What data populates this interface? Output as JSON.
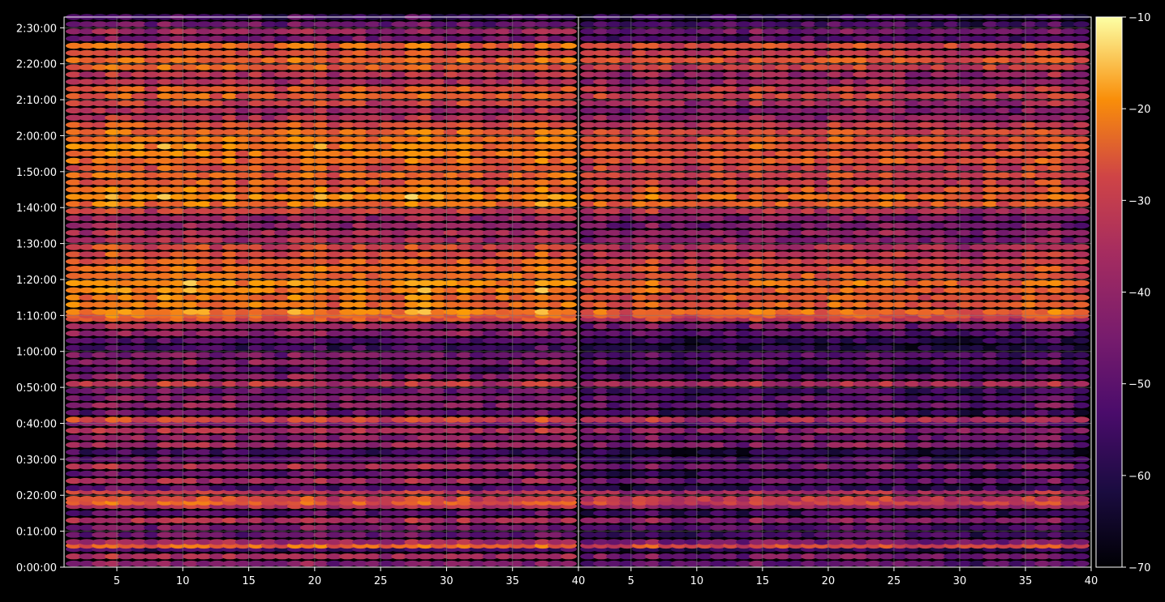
{
  "chart_data": {
    "type": "heatmap",
    "title": "",
    "xlabel": "",
    "ylabel": "",
    "colormap": "inferno",
    "colors": {
      "background": "#000000",
      "axis": "#ffffff",
      "grid": "#808080"
    },
    "grid": true,
    "panels": [
      {
        "name": "",
        "xlim": [
          1,
          40
        ],
        "xticks": [
          "5",
          "10",
          "15",
          "20",
          "25",
          "30",
          "35",
          "40"
        ],
        "xtick_values": [
          5,
          10,
          15,
          20,
          25,
          30,
          35,
          40
        ]
      },
      {
        "name": "",
        "xlim": [
          1,
          40
        ],
        "xticks": [
          "5",
          "10",
          "15",
          "20",
          "25",
          "30",
          "35",
          "40"
        ],
        "xtick_values": [
          5,
          10,
          15,
          20,
          25,
          30,
          35,
          40
        ]
      }
    ],
    "y_axis": {
      "ylim_seconds": [
        0,
        9180
      ],
      "ticks": [
        "0:00:00",
        "0:10:00",
        "0:20:00",
        "0:30:00",
        "0:40:00",
        "0:50:00",
        "1:00:00",
        "1:10:00",
        "1:20:00",
        "1:30:00",
        "1:40:00",
        "1:50:00",
        "2:00:00",
        "2:10:00",
        "2:20:00",
        "2:30:00"
      ],
      "tick_values_seconds": [
        0,
        600,
        1200,
        1800,
        2400,
        3000,
        3600,
        4200,
        4800,
        5400,
        6000,
        6600,
        7200,
        7800,
        8400,
        9000
      ]
    },
    "colorbar": {
      "vmin": -70,
      "vmax": -10,
      "ticks": [
        "−10",
        "−20",
        "−30",
        "−40",
        "−50",
        "−60",
        "−70"
      ],
      "tick_values": [
        -10,
        -20,
        -30,
        -40,
        -50,
        -60,
        -70
      ]
    },
    "columns": 39,
    "intensity_profile": {
      "time_seconds": [
        0,
        120,
        240,
        300,
        360,
        480,
        600,
        720,
        840,
        960,
        1020,
        1080,
        1200,
        1260,
        1380,
        1500,
        1620,
        1740,
        1860,
        1980,
        2100,
        2220,
        2340,
        2400,
        2520,
        2640,
        2760,
        2880,
        3000,
        3120,
        3240,
        3360,
        3480,
        3600,
        3720,
        3840,
        3960,
        4080,
        4140,
        4200,
        4320,
        4440,
        4560,
        4680,
        4800,
        4920,
        5040,
        5160,
        5280,
        5400,
        5520,
        5640,
        5760,
        5880,
        6000,
        6120,
        6240,
        6360,
        6480,
        6600,
        6720,
        6840,
        6960,
        7080,
        7200,
        7320,
        7440,
        7560,
        7680,
        7800,
        7920,
        8040,
        8160,
        8280,
        8400,
        8520,
        8640,
        8760,
        8880,
        9000,
        9120
      ],
      "panel_left_dB": [
        -46,
        -40,
        -56,
        -26,
        -42,
        -50,
        -48,
        -40,
        -52,
        -38,
        -28,
        -32,
        -36,
        -54,
        -42,
        -52,
        -40,
        -50,
        -56,
        -40,
        -45,
        -38,
        -48,
        -32,
        -52,
        -44,
        -46,
        -50,
        -36,
        -44,
        -52,
        -44,
        -48,
        -56,
        -54,
        -44,
        -42,
        -30,
        -26,
        -22,
        -24,
        -24,
        -22,
        -20,
        -24,
        -26,
        -28,
        -30,
        -32,
        -40,
        -38,
        -44,
        -42,
        -34,
        -24,
        -20,
        -24,
        -28,
        -26,
        -30,
        -26,
        -24,
        -22,
        -24,
        -26,
        -30,
        -38,
        -40,
        -34,
        -28,
        -30,
        -38,
        -36,
        -28,
        -26,
        -32,
        -26,
        -48,
        -42,
        -50,
        -56
      ],
      "panel_right_dB": [
        -52,
        -48,
        -60,
        -32,
        -48,
        -56,
        -54,
        -46,
        -58,
        -44,
        -34,
        -36,
        -40,
        -60,
        -50,
        -58,
        -46,
        -56,
        -62,
        -46,
        -50,
        -44,
        -54,
        -38,
        -58,
        -50,
        -52,
        -56,
        -40,
        -50,
        -58,
        -50,
        -54,
        -62,
        -60,
        -52,
        -48,
        -36,
        -30,
        -26,
        -28,
        -30,
        -28,
        -26,
        -30,
        -32,
        -34,
        -36,
        -38,
        -46,
        -44,
        -48,
        -46,
        -38,
        -28,
        -26,
        -30,
        -34,
        -32,
        -34,
        -30,
        -30,
        -28,
        -30,
        -32,
        -36,
        -44,
        -46,
        -40,
        -34,
        -36,
        -44,
        -42,
        -34,
        -30,
        -36,
        -32,
        -54,
        -48,
        -56,
        -60
      ]
    }
  }
}
